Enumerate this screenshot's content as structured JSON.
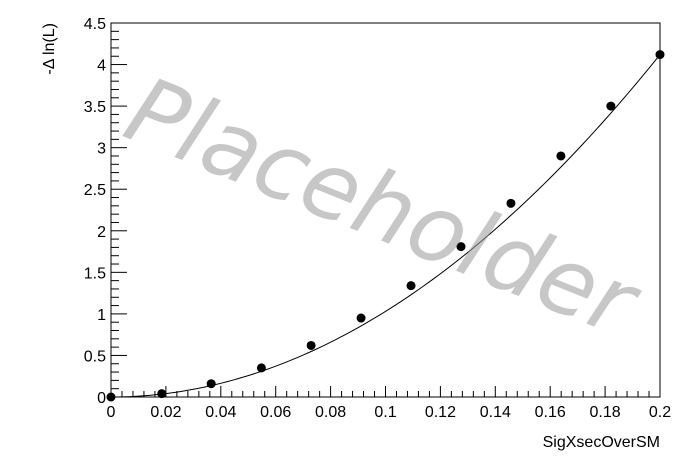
{
  "chart_data": {
    "type": "scatter",
    "xlabel": "SigXsecOverSM",
    "ylabel": "-Δ ln(L)",
    "xlim": [
      0,
      0.2
    ],
    "ylim": [
      0,
      4.5
    ],
    "xticks": [
      "0",
      "0.02",
      "0.04",
      "0.06",
      "0.08",
      "0.1",
      "0.12",
      "0.14",
      "0.16",
      "0.18",
      "0.2"
    ],
    "yticks": [
      "0",
      "0.5",
      "1",
      "1.5",
      "2",
      "2.5",
      "3",
      "3.5",
      "4",
      "4.5"
    ],
    "grid": false,
    "series": [
      {
        "marker": "filled-circle",
        "color": "#000000",
        "x": [
          0.0,
          0.0185,
          0.0365,
          0.0548,
          0.0729,
          0.0911,
          0.1093,
          0.1275,
          0.1457,
          0.1639,
          0.1821,
          0.2
        ],
        "y": [
          0.0,
          0.04,
          0.16,
          0.35,
          0.62,
          0.95,
          1.34,
          1.81,
          2.33,
          2.9,
          3.5,
          4.12
        ]
      }
    ],
    "fit_curve": {
      "color": "#000000",
      "form": "quadratic"
    },
    "watermark": "Placeholder"
  }
}
